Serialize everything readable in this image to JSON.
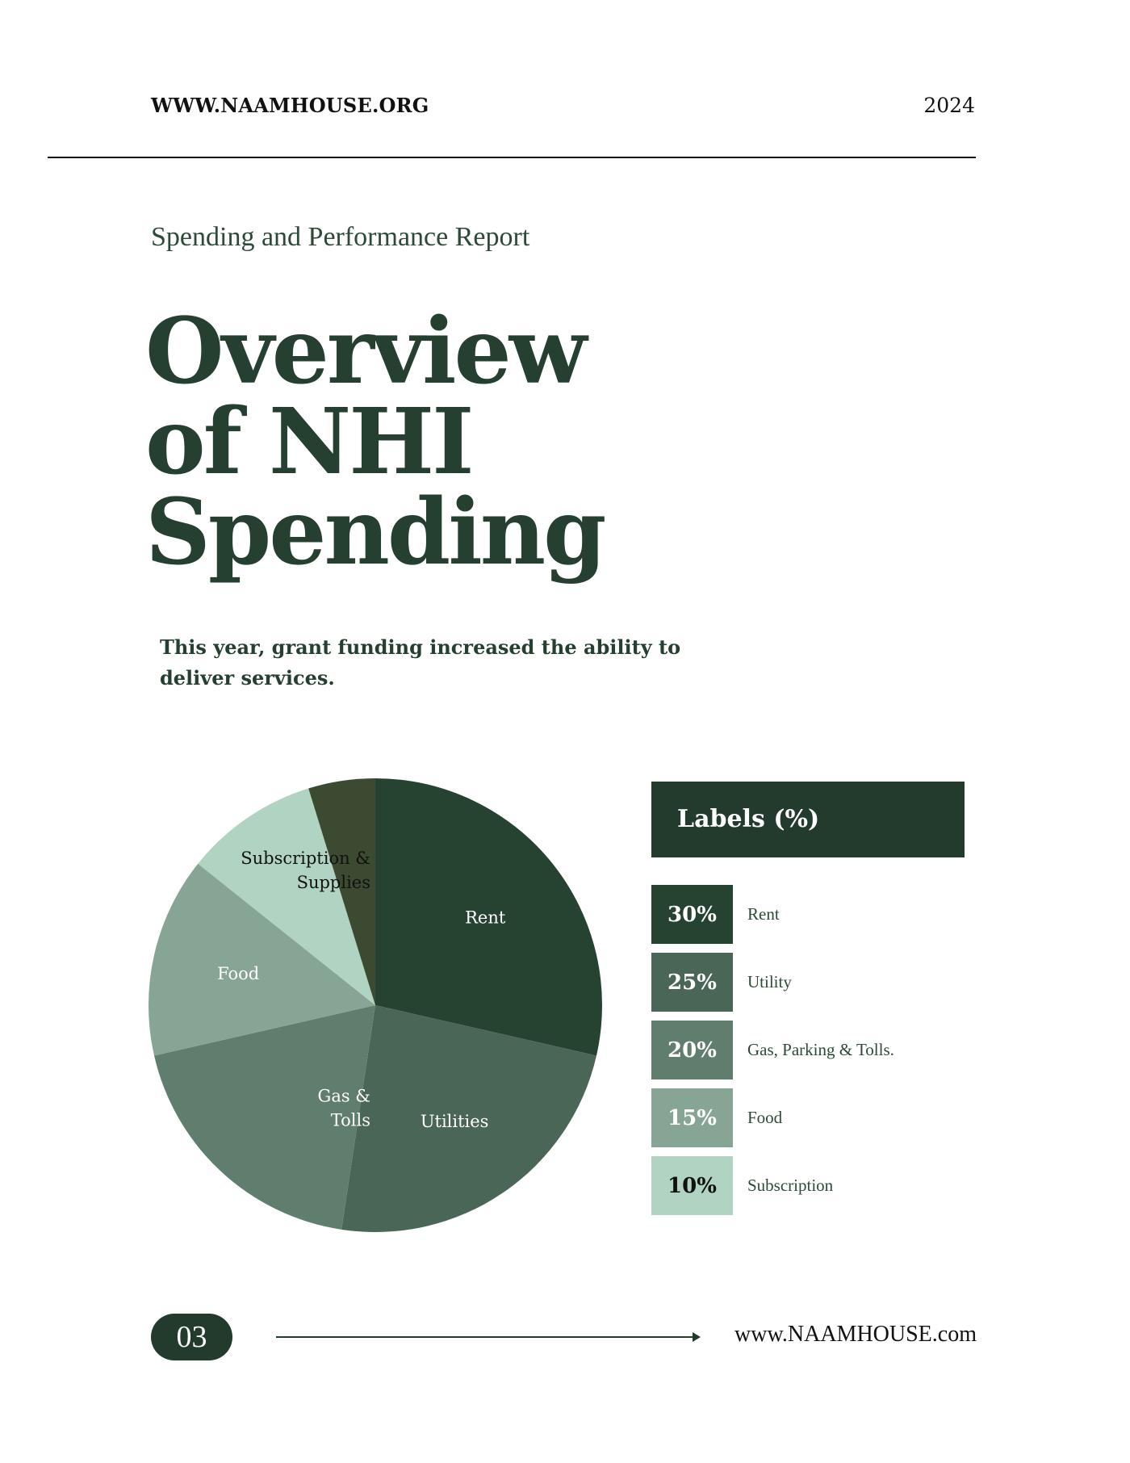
{
  "header": {
    "site": "WWW.NAAMHOUSE.ORG",
    "year": "2024"
  },
  "subtitle": "Spending and Performance Report",
  "title_lines": [
    "Overview",
    "of NHI",
    "Spending"
  ],
  "intro": "This year, grant funding increased the ability to deliver services.",
  "colors": {
    "rent": "#264331",
    "utilities": "#4a6656",
    "gas": "#607e6d",
    "food": "#87a594",
    "subscription": "#b0d4c1",
    "other": "#3b4a30",
    "accent": "#223b2d"
  },
  "chart_data": {
    "type": "pie",
    "slices": [
      {
        "label": "Rent",
        "value": 30,
        "color": "#264331",
        "text_color": "#ffffff"
      },
      {
        "label": "Utilities",
        "value": 25,
        "color": "#4a6656",
        "text_color": "#ffffff"
      },
      {
        "label": "Gas & Tolls",
        "value": 20,
        "color": "#607e6d",
        "text_color": "#ffffff"
      },
      {
        "label": "Food",
        "value": 15,
        "color": "#87a594",
        "text_color": "#ffffff"
      },
      {
        "label": "Subscription & Supplies",
        "value": 10,
        "color": "#b0d4c1",
        "text_color": "#111111"
      },
      {
        "label": "",
        "value": 5,
        "color": "#3b4a30",
        "text_color": "#ffffff"
      }
    ]
  },
  "legend": {
    "title": "Labels (%)",
    "items": [
      {
        "percent": "30%",
        "label": "Rent",
        "color": "#264331",
        "text_color": "#ffffff"
      },
      {
        "percent": "25%",
        "label": "Utility",
        "color": "#4a6656",
        "text_color": "#ffffff"
      },
      {
        "percent": "20%",
        "label": "Gas, Parking & Tolls.",
        "color": "#607e6d",
        "text_color": "#ffffff"
      },
      {
        "percent": "15%",
        "label": "Food",
        "color": "#87a594",
        "text_color": "#ffffff"
      },
      {
        "percent": "10%",
        "label": "Subscription",
        "color": "#b0d4c1",
        "text_color": "#111111"
      }
    ]
  },
  "footer": {
    "page": "03",
    "site": "www.NAAMHOUSE.com"
  }
}
